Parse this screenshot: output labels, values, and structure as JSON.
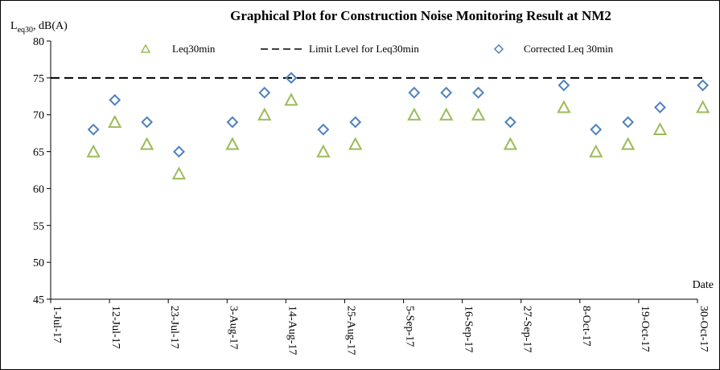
{
  "chart_data": {
    "type": "scatter",
    "title": "Graphical Plot for Construction Noise Monitoring Result at NM2",
    "ylabel": {
      "main": "L",
      "sub": "eq30",
      "rest": ", dB(A)"
    },
    "xlabel": "Date",
    "ylim": [
      45,
      80
    ],
    "yticks": [
      45,
      50,
      55,
      60,
      65,
      70,
      75,
      80
    ],
    "xlim": [
      "2017-07-01",
      "2017-10-30"
    ],
    "xticks": [
      {
        "date": "2017-07-01",
        "label": "1-Jul-17"
      },
      {
        "date": "2017-07-12",
        "label": "12-Jul-17"
      },
      {
        "date": "2017-07-23",
        "label": "23-Jul-17"
      },
      {
        "date": "2017-08-03",
        "label": "3-Aug-17"
      },
      {
        "date": "2017-08-14",
        "label": "14-Aug-17"
      },
      {
        "date": "2017-08-25",
        "label": "25-Aug-17"
      },
      {
        "date": "2017-09-05",
        "label": "5-Sep-17"
      },
      {
        "date": "2017-09-16",
        "label": "16-Sep-17"
      },
      {
        "date": "2017-09-27",
        "label": "27-Sep-17"
      },
      {
        "date": "2017-10-08",
        "label": "8-Oct-17"
      },
      {
        "date": "2017-10-19",
        "label": "19-Oct-17"
      },
      {
        "date": "2017-10-30",
        "label": "30-Oct-17"
      }
    ],
    "legend_position": "top",
    "grid": false,
    "series": [
      {
        "name": "Leq30min",
        "marker": "triangle",
        "color": "#9bbb59",
        "points": [
          {
            "x": "2017-07-09",
            "y": 65
          },
          {
            "x": "2017-07-13",
            "y": 69
          },
          {
            "x": "2017-07-19",
            "y": 66
          },
          {
            "x": "2017-07-25",
            "y": 62
          },
          {
            "x": "2017-08-04",
            "y": 66
          },
          {
            "x": "2017-08-10",
            "y": 70
          },
          {
            "x": "2017-08-15",
            "y": 72
          },
          {
            "x": "2017-08-21",
            "y": 65
          },
          {
            "x": "2017-08-27",
            "y": 66
          },
          {
            "x": "2017-09-07",
            "y": 70
          },
          {
            "x": "2017-09-13",
            "y": 70
          },
          {
            "x": "2017-09-19",
            "y": 70
          },
          {
            "x": "2017-09-25",
            "y": 66
          },
          {
            "x": "2017-10-05",
            "y": 71
          },
          {
            "x": "2017-10-11",
            "y": 65
          },
          {
            "x": "2017-10-17",
            "y": 66
          },
          {
            "x": "2017-10-23",
            "y": 68
          },
          {
            "x": "2017-10-31",
            "y": 71
          }
        ]
      },
      {
        "name": "Limit Level for Leq30min",
        "marker": "dashed-line",
        "color": "#000000",
        "value": 75
      },
      {
        "name": "Corrected Leq 30min",
        "marker": "diamond",
        "color": "#4f81bd",
        "points": [
          {
            "x": "2017-07-09",
            "y": 68
          },
          {
            "x": "2017-07-13",
            "y": 72
          },
          {
            "x": "2017-07-19",
            "y": 69
          },
          {
            "x": "2017-07-25",
            "y": 65
          },
          {
            "x": "2017-08-04",
            "y": 69
          },
          {
            "x": "2017-08-10",
            "y": 73
          },
          {
            "x": "2017-08-15",
            "y": 75
          },
          {
            "x": "2017-08-21",
            "y": 68
          },
          {
            "x": "2017-08-27",
            "y": 69
          },
          {
            "x": "2017-09-07",
            "y": 73
          },
          {
            "x": "2017-09-13",
            "y": 73
          },
          {
            "x": "2017-09-19",
            "y": 73
          },
          {
            "x": "2017-09-25",
            "y": 69
          },
          {
            "x": "2017-10-05",
            "y": 74
          },
          {
            "x": "2017-10-11",
            "y": 68
          },
          {
            "x": "2017-10-17",
            "y": 69
          },
          {
            "x": "2017-10-23",
            "y": 71
          },
          {
            "x": "2017-10-31",
            "y": 74
          }
        ]
      }
    ]
  }
}
